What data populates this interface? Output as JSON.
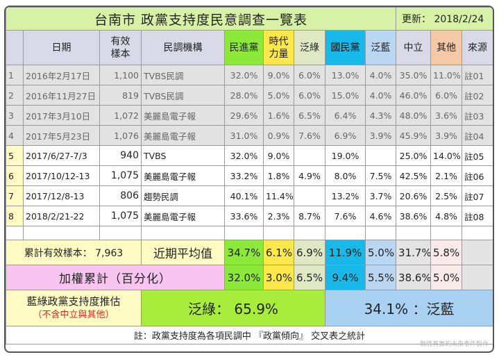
{
  "title": "台南市 政黨支持度民意調查一覽表",
  "update": "更新：  2018/2/24",
  "headers": {
    "idx": "",
    "date": "日期",
    "sample": "有效\n樣本",
    "org": "民調機構",
    "dpp": "民進黨",
    "npp": "時代\n力量",
    "green": "泛綠",
    "kmt": "國民黨",
    "blue": "泛藍",
    "neutral": "中立",
    "other": "其他",
    "source": "來源"
  },
  "rows": [
    {
      "idx": "1",
      "date": "2016年2月17日",
      "sample": "1,100",
      "org": "TVBS民調",
      "dpp": "32.0%",
      "npp": "9.0%",
      "green": "6.0%",
      "kmt": "13.0%",
      "blue": "4.0%",
      "neutral": "35.0%",
      "other": "11.0%",
      "source": "註01"
    },
    {
      "idx": "2",
      "date": "2016年11月27日",
      "sample": "819",
      "org": "TVBS民調",
      "dpp": "28.0%",
      "npp": "5.0%",
      "green": "6.0%",
      "kmt": "15.0%",
      "blue": "4.0%",
      "neutral": "46.0%",
      "other": "6.0%",
      "source": "註02"
    },
    {
      "idx": "3",
      "date": "2017年3月10日",
      "sample": "1,072",
      "org": "美麗島電子報",
      "dpp": "29.6%",
      "npp": "1.6%",
      "green": "6.5%",
      "kmt": "6.4%",
      "blue": "4.3%",
      "neutral": "48.0%",
      "other": "3.6%",
      "source": "註03"
    },
    {
      "idx": "4",
      "date": "2017年5月23日",
      "sample": "1,076",
      "org": "美麗島電子報",
      "dpp": "31.0%",
      "npp": "0.9%",
      "green": "7.6%",
      "kmt": "6.9%",
      "blue": "3.9%",
      "neutral": "45.9%",
      "other": "3.9%",
      "source": "註04"
    },
    {
      "idx": "5",
      "date": "2017/6/27-7/3",
      "sample": "940",
      "org": "TVBS",
      "dpp": "32.0%",
      "npp": "9.0%",
      "green": "",
      "kmt": "19.0%",
      "blue": "",
      "neutral": "25.0%",
      "other": "14.0%",
      "source": "註05"
    },
    {
      "idx": "6",
      "date": "2017/10/12-13",
      "sample": "1,075",
      "org": "美麗島電子報",
      "dpp": "33.2%",
      "npp": "1.8%",
      "green": "4.9%",
      "kmt": "8.0%",
      "blue": "7.5%",
      "neutral": "42.5%",
      "other": "2.1%",
      "source": "註06"
    },
    {
      "idx": "7",
      "date": "2017/12/8-13",
      "sample": "806",
      "org": "趨勢民調",
      "dpp": "40.1%",
      "npp": "11.4%",
      "green": "",
      "kmt": "13.2%",
      "blue": "3.7%",
      "neutral": "20.6%",
      "other": "2.5%",
      "source": "註07"
    },
    {
      "idx": "8",
      "date": "2018/2/21-22",
      "sample": "1,075",
      "org": "美麗島電子報",
      "dpp": "33.6%",
      "npp": "2.3%",
      "green": "8.7%",
      "kmt": "7.6%",
      "blue": "4.6%",
      "neutral": "38.6%",
      "other": "4.8%",
      "source": "註08"
    }
  ],
  "summary": {
    "total_label": "累計有效樣本：  7,963",
    "avg_label": "近期平均值",
    "avg": {
      "dpp": "34.7%",
      "npp": "6.1%",
      "green": "6.9%",
      "kmt": "11.9%",
      "blue": "5.0%",
      "neutral": "31.7%",
      "other": "5.8%"
    },
    "weighted_label": "加權累計（百分化）",
    "weighted": {
      "dpp": "32.0%",
      "npp": "3.0%",
      "green": "6.5%",
      "kmt": "9.4%",
      "blue": "5.5%",
      "neutral": "38.6%",
      "other": "5.0%"
    }
  },
  "estimate": {
    "label": "藍綠政黨支持度推估",
    "note": "（不含中立與其他）",
    "green": "泛綠：  65.9%",
    "blue": "34.1%  ：泛藍"
  },
  "footnote": "註：政黨支持度為各項民調中 『政黨傾向』 交叉表之統計",
  "watermark": "無情真實的未來事件製作"
}
